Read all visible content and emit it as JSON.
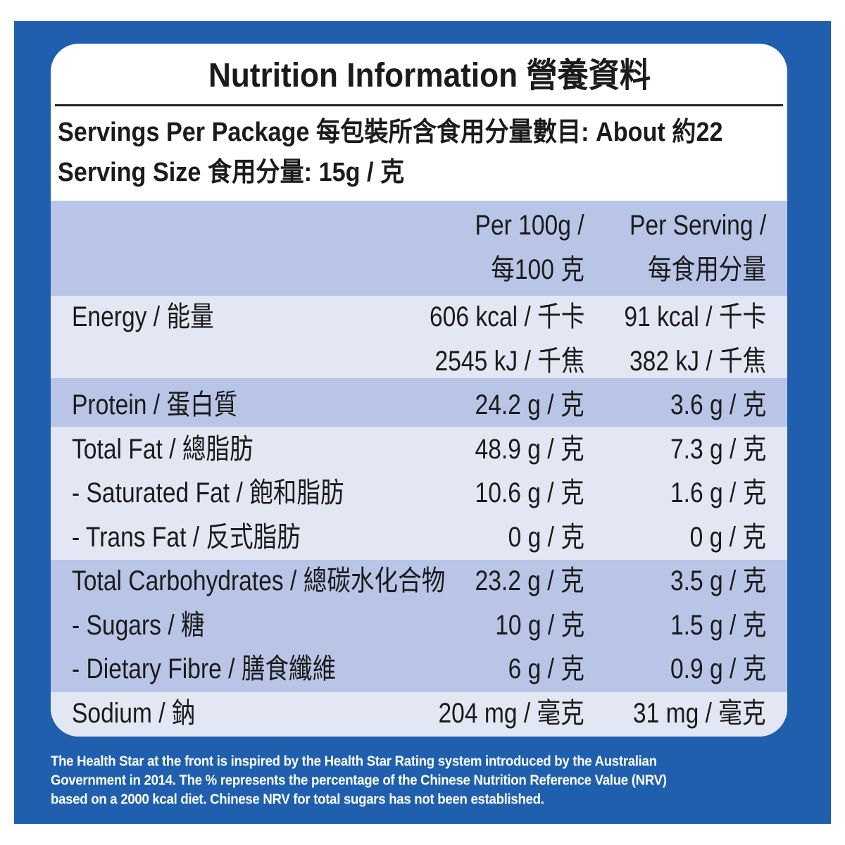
{
  "title": "Nutrition Information 營養資料",
  "servings_per_package": "Servings Per Package 每包裝所含食用分量數目: About 約22",
  "serving_size": "Serving Size 食用分量: 15g / 克",
  "table": {
    "header": {
      "per_100g": [
        "Per 100g /",
        "每100 克"
      ],
      "per_serving": [
        "Per Serving /",
        "每食用分量"
      ]
    },
    "rows": [
      {
        "label": "Energy / 能量",
        "per_100g": [
          "606 kcal / 千卡",
          "2545 kJ / 千焦"
        ],
        "per_serving": [
          "91 kcal / 千卡",
          "382 kJ / 千焦"
        ]
      },
      {
        "label": "Protein / 蛋白質",
        "per_100g": [
          "24.2 g / 克"
        ],
        "per_serving": [
          "3.6 g / 克"
        ]
      },
      {
        "label": "Total Fat / 總脂肪",
        "per_100g": [
          "48.9 g / 克"
        ],
        "per_serving": [
          "7.3 g / 克"
        ]
      },
      {
        "label": "- Saturated Fat / 飽和脂肪",
        "per_100g": [
          "10.6 g / 克"
        ],
        "per_serving": [
          "1.6 g / 克"
        ]
      },
      {
        "label": "- Trans Fat / 反式脂肪",
        "per_100g": [
          "0 g / 克"
        ],
        "per_serving": [
          "0 g / 克"
        ]
      },
      {
        "label": "Total Carbohydrates / 總碳水化合物",
        "per_100g": [
          "23.2 g / 克"
        ],
        "per_serving": [
          "3.5 g / 克"
        ]
      },
      {
        "label": "- Sugars / 糖",
        "per_100g": [
          "10 g / 克"
        ],
        "per_serving": [
          "1.5 g / 克"
        ]
      },
      {
        "label": "- Dietary Fibre / 膳食纖維",
        "per_100g": [
          "6 g / 克"
        ],
        "per_serving": [
          "0.9 g / 克"
        ]
      },
      {
        "label": "Sodium / 鈉",
        "per_100g": [
          "204 mg / 毫克"
        ],
        "per_serving": [
          "31 mg / 毫克"
        ]
      }
    ]
  },
  "footnote": [
    "The Health Star at the front is inspired by the Health Star Rating system introduced by the Australian",
    "Government in 2014. The % represents the percentage of the Chinese Nutrition Reference Value (NRV)",
    "based on a 2000 kcal diet. Chinese NRV for total sugars has not been established."
  ]
}
